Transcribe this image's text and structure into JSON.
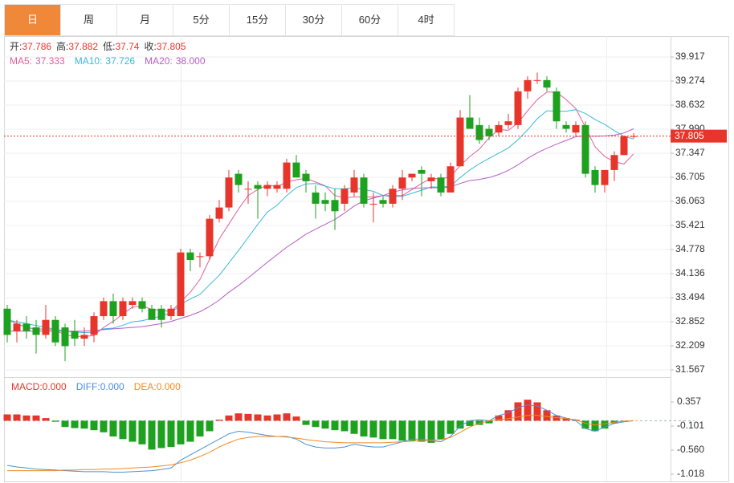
{
  "tabs": [
    "日",
    "周",
    "月",
    "5分",
    "15分",
    "30分",
    "60分",
    "4时"
  ],
  "chart_data": [
    {
      "type": "candlestick",
      "ohlc_labels": [
        "开:",
        "高:",
        "低:",
        "收:"
      ],
      "up_color": "#e8352b",
      "down_color": "#1ea11e",
      "last_color": "#e8352b",
      "ylim": [
        31.374,
        40.474
      ],
      "yticks": [
        39.917,
        39.274,
        38.632,
        {
          "value": 37.99,
          "label": "37.990"
        },
        37.347,
        36.705,
        36.063,
        35.421,
        34.778,
        34.136,
        33.494,
        32.852,
        32.209,
        31.567
      ],
      "open": [
        33.2,
        32.6,
        32.8,
        32.7,
        32.5,
        32.9,
        32.7,
        32.6,
        32.4,
        32.5,
        33.0,
        33.4,
        33.0,
        33.3,
        33.4,
        33.2,
        33.2,
        33.0,
        33.0,
        34.7,
        34.6,
        34.6,
        35.6,
        35.9,
        36.8,
        36.4,
        36.5,
        36.4,
        36.4,
        36.4,
        37.1,
        36.8,
        36.3,
        36.1,
        36.1,
        36.0,
        36.3,
        36.7,
        36.0,
        36.1,
        36.0,
        36.4,
        36.7,
        36.9,
        36.6,
        36.7,
        36.3,
        37.0,
        38.3,
        38.1,
        38.0,
        37.9,
        38.1,
        38.1,
        39.0,
        39.3,
        39.3,
        39.0,
        38.1,
        37.9,
        38.1,
        36.9,
        36.5,
        36.9,
        37.3,
        37.786
      ],
      "high": [
        33.3,
        32.9,
        33.0,
        32.9,
        33.3,
        33.0,
        32.8,
        32.9,
        32.7,
        33.1,
        33.5,
        33.6,
        33.5,
        33.5,
        33.5,
        33.3,
        33.3,
        33.3,
        34.8,
        34.8,
        34.7,
        35.7,
        36.1,
        36.9,
        36.9,
        36.6,
        36.6,
        36.6,
        36.6,
        37.2,
        37.3,
        36.9,
        36.5,
        36.3,
        36.4,
        36.5,
        36.9,
        36.8,
        36.3,
        36.2,
        36.5,
        36.9,
        36.8,
        37.0,
        36.8,
        36.8,
        37.1,
        38.5,
        38.9,
        38.3,
        38.1,
        38.2,
        38.4,
        39.1,
        39.4,
        39.5,
        39.4,
        39.1,
        38.2,
        38.2,
        38.2,
        37.0,
        36.9,
        37.4,
        37.8,
        37.882
      ],
      "low": [
        32.3,
        32.3,
        32.4,
        32.0,
        32.4,
        32.2,
        31.8,
        32.2,
        32.2,
        32.3,
        32.9,
        32.8,
        32.9,
        33.2,
        33.1,
        32.9,
        32.7,
        32.9,
        33.0,
        34.2,
        34.3,
        34.5,
        35.5,
        35.8,
        36.3,
        36.0,
        35.6,
        36.2,
        36.3,
        36.3,
        36.7,
        36.3,
        35.6,
        35.8,
        35.3,
        35.8,
        36.2,
        35.9,
        35.5,
        35.9,
        35.9,
        36.1,
        36.6,
        36.2,
        36.4,
        36.2,
        36.3,
        37.0,
        38.0,
        37.6,
        37.7,
        37.8,
        38.0,
        38.0,
        38.8,
        39.2,
        39.0,
        38.0,
        37.9,
        37.8,
        36.7,
        36.3,
        36.3,
        36.6,
        37.3,
        37.74
      ],
      "close": [
        32.5,
        32.8,
        32.6,
        32.5,
        32.9,
        32.3,
        32.2,
        32.4,
        32.5,
        33.0,
        33.4,
        33.0,
        33.4,
        33.4,
        33.2,
        32.9,
        32.9,
        33.2,
        34.7,
        34.5,
        34.6,
        35.6,
        35.9,
        36.7,
        36.5,
        36.4,
        36.4,
        36.5,
        36.5,
        37.1,
        36.7,
        36.6,
        36.0,
        36.0,
        35.8,
        36.4,
        36.7,
        36.0,
        36.0,
        36.0,
        36.4,
        36.7,
        36.8,
        36.8,
        36.7,
        36.3,
        37.0,
        38.3,
        38.0,
        37.7,
        37.8,
        38.1,
        38.2,
        39.0,
        39.3,
        39.3,
        39.1,
        38.2,
        38.0,
        38.1,
        36.8,
        36.5,
        36.9,
        37.3,
        37.8,
        37.805
      ],
      "series": [
        {
          "name": "MA5:",
          "color": "#e0609a",
          "legend_label": "37.333",
          "values": [
            32.9,
            32.8,
            32.7,
            32.65,
            32.66,
            32.62,
            32.5,
            32.46,
            32.46,
            32.48,
            32.7,
            32.86,
            33.06,
            33.24,
            33.28,
            33.18,
            33.16,
            33.12,
            33.38,
            33.64,
            33.98,
            34.52,
            35.06,
            35.46,
            35.86,
            36.22,
            36.38,
            36.5,
            36.46,
            36.58,
            36.64,
            36.68,
            36.58,
            36.48,
            36.22,
            36.16,
            36.18,
            36.18,
            36.18,
            36.22,
            36.22,
            36.22,
            36.38,
            36.54,
            36.68,
            36.66,
            36.72,
            37.02,
            37.26,
            37.46,
            37.76,
            37.98,
            37.96,
            38.16,
            38.48,
            38.78,
            38.98,
            38.98,
            38.78,
            38.54,
            38.04,
            37.52,
            37.26,
            37.12,
            37.06,
            37.333
          ]
        },
        {
          "name": "MA10:",
          "color": "#3ab8d8",
          "legend_label": "37.726",
          "values": [
            32.9,
            32.85,
            32.8,
            32.75,
            32.7,
            32.65,
            32.6,
            32.58,
            32.56,
            32.57,
            32.66,
            32.68,
            32.76,
            32.85,
            32.88,
            32.94,
            33.01,
            33.09,
            33.31,
            33.46,
            33.58,
            33.84,
            34.09,
            34.42,
            34.75,
            35.1,
            35.45,
            35.78,
            35.96,
            36.22,
            36.43,
            36.53,
            36.54,
            36.47,
            36.4,
            36.4,
            36.43,
            36.38,
            36.33,
            36.22,
            36.19,
            36.2,
            36.28,
            36.36,
            36.45,
            36.44,
            36.47,
            36.7,
            36.9,
            37.07,
            37.21,
            37.35,
            37.49,
            37.71,
            37.97,
            38.27,
            38.48,
            38.47,
            38.47,
            38.51,
            38.41,
            38.25,
            38.12,
            37.95,
            37.8,
            37.726
          ]
        },
        {
          "name": "MA20:",
          "color": "#b85cc8",
          "legend_label": "38.000",
          "values": [
            32.6,
            32.6,
            32.6,
            32.6,
            32.6,
            32.6,
            32.6,
            32.6,
            32.6,
            32.62,
            32.64,
            32.66,
            32.68,
            32.7,
            32.72,
            32.76,
            32.8,
            32.86,
            32.94,
            33.02,
            33.12,
            33.26,
            33.43,
            33.64,
            33.82,
            34.02,
            34.23,
            34.44,
            34.64,
            34.84,
            35.01,
            35.19,
            35.32,
            35.45,
            35.58,
            35.75,
            35.94,
            36.08,
            36.15,
            36.22,
            36.31,
            36.37,
            36.41,
            36.42,
            36.43,
            36.42,
            36.45,
            36.54,
            36.62,
            36.65,
            36.7,
            36.78,
            36.89,
            37.04,
            37.21,
            37.36,
            37.48,
            37.59,
            37.69,
            37.79,
            37.81,
            37.8,
            37.81,
            37.83,
            37.89,
            38.0
          ]
        }
      ]
    },
    {
      "type": "macd",
      "ylim": [
        -1.155,
        0.8
      ],
      "yticks": [
        0.357,
        -0.101,
        {
          "value": -0.56,
          "label": "-0.560"
        },
        -1.018
      ],
      "series": [
        {
          "name": "MACD:",
          "up_color": "#e8352b",
          "down_color": "#1ea11e",
          "color": "#e8352b",
          "legend_label": "0.000",
          "values": [
            0.12,
            0.12,
            0.1,
            0.1,
            0.05,
            -0.02,
            -0.12,
            -0.14,
            -0.15,
            -0.18,
            -0.22,
            -0.3,
            -0.35,
            -0.4,
            -0.45,
            -0.55,
            -0.52,
            -0.5,
            -0.45,
            -0.4,
            -0.3,
            -0.2,
            0.02,
            0.1,
            0.14,
            0.13,
            0.12,
            0.1,
            0.12,
            0.14,
            0.08,
            -0.08,
            -0.12,
            -0.15,
            -0.18,
            -0.2,
            -0.25,
            -0.3,
            -0.32,
            -0.35,
            -0.35,
            -0.38,
            -0.38,
            -0.4,
            -0.42,
            -0.35,
            -0.25,
            -0.15,
            -0.1,
            -0.08,
            -0.05,
            0.1,
            0.2,
            0.35,
            0.4,
            0.35,
            0.2,
            0.1,
            0.05,
            0.02,
            -0.15,
            -0.2,
            -0.15,
            -0.05,
            -0.02,
            0.0
          ]
        },
        {
          "name": "DIFF:",
          "color": "#4a90d9",
          "legend_label": "0.000",
          "values": [
            -0.85,
            -0.88,
            -0.9,
            -0.92,
            -0.93,
            -0.94,
            -0.95,
            -0.96,
            -0.97,
            -0.97,
            -0.97,
            -0.98,
            -0.98,
            -0.97,
            -0.96,
            -0.95,
            -0.93,
            -0.9,
            -0.75,
            -0.65,
            -0.55,
            -0.45,
            -0.35,
            -0.25,
            -0.2,
            -0.22,
            -0.25,
            -0.28,
            -0.3,
            -0.3,
            -0.35,
            -0.45,
            -0.5,
            -0.52,
            -0.52,
            -0.5,
            -0.45,
            -0.48,
            -0.5,
            -0.5,
            -0.45,
            -0.4,
            -0.35,
            -0.35,
            -0.38,
            -0.4,
            -0.3,
            -0.1,
            0.0,
            0.02,
            0.0,
            0.1,
            0.15,
            0.25,
            0.3,
            0.28,
            0.2,
            0.1,
            0.05,
            0.0,
            -0.15,
            -0.2,
            -0.12,
            -0.05,
            -0.02,
            0.0
          ]
        },
        {
          "name": "DEA:",
          "color": "#f08a24",
          "legend_label": "0.000",
          "values": [
            -0.95,
            -0.95,
            -0.95,
            -0.95,
            -0.95,
            -0.95,
            -0.94,
            -0.94,
            -0.93,
            -0.93,
            -0.92,
            -0.92,
            -0.91,
            -0.9,
            -0.89,
            -0.88,
            -0.86,
            -0.84,
            -0.8,
            -0.75,
            -0.68,
            -0.6,
            -0.5,
            -0.42,
            -0.35,
            -0.32,
            -0.3,
            -0.3,
            -0.3,
            -0.31,
            -0.33,
            -0.36,
            -0.38,
            -0.4,
            -0.41,
            -0.42,
            -0.42,
            -0.42,
            -0.42,
            -0.42,
            -0.41,
            -0.4,
            -0.39,
            -0.38,
            -0.37,
            -0.36,
            -0.32,
            -0.22,
            -0.12,
            -0.05,
            0.0,
            0.02,
            0.04,
            0.07,
            0.1,
            0.1,
            0.08,
            0.06,
            0.04,
            0.02,
            -0.05,
            -0.08,
            -0.06,
            -0.03,
            -0.01,
            0.0
          ]
        }
      ]
    }
  ]
}
